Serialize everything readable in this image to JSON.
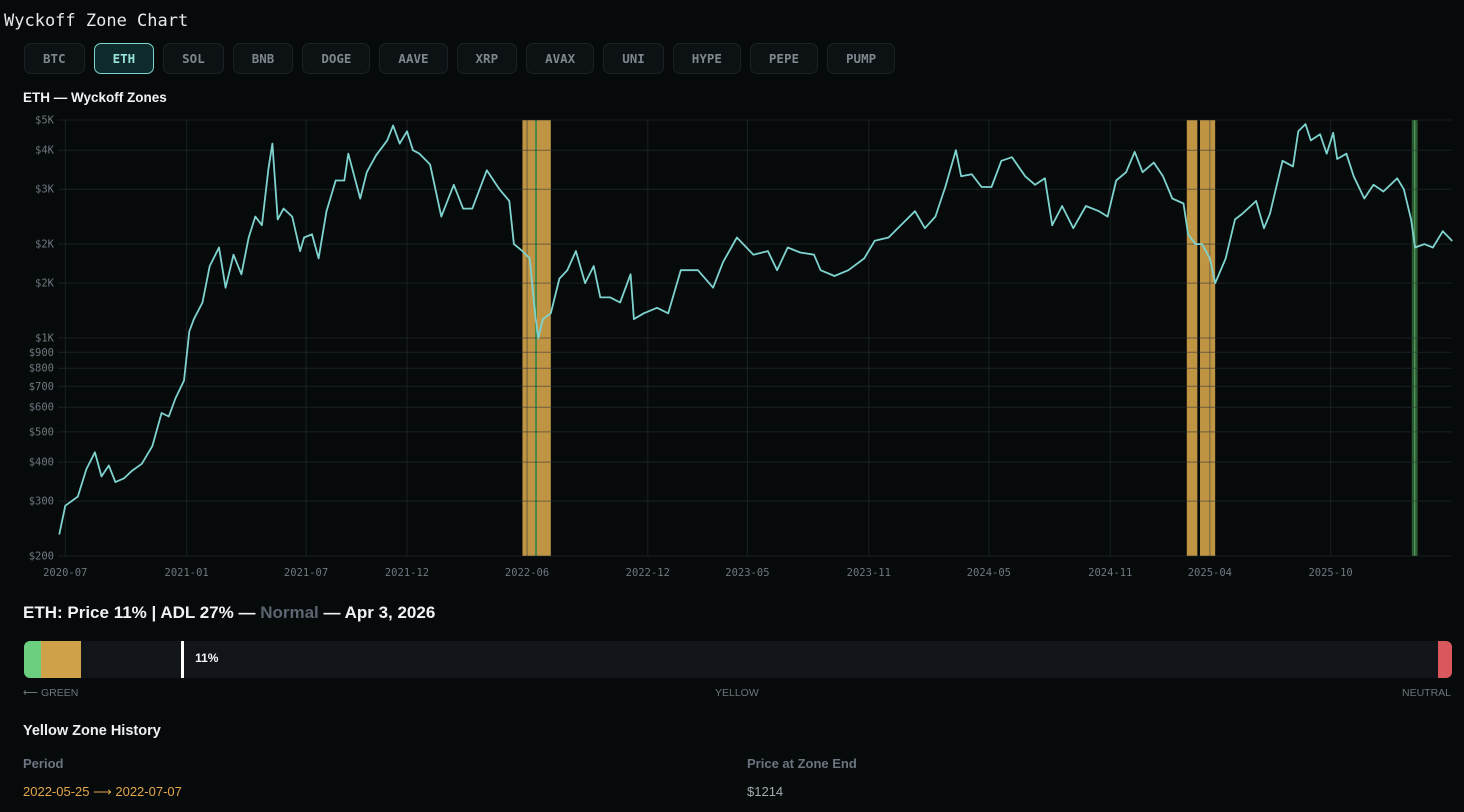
{
  "app": {
    "title": "Wyckoff Zone Chart"
  },
  "tabs": [
    {
      "label": "BTC",
      "active": false
    },
    {
      "label": "ETH",
      "active": true
    },
    {
      "label": "SOL",
      "active": false
    },
    {
      "label": "BNB",
      "active": false
    },
    {
      "label": "DOGE",
      "active": false
    },
    {
      "label": "AAVE",
      "active": false
    },
    {
      "label": "XRP",
      "active": false
    },
    {
      "label": "AVAX",
      "active": false
    },
    {
      "label": "UNI",
      "active": false
    },
    {
      "label": "HYPE",
      "active": false
    },
    {
      "label": "PEPE",
      "active": false
    },
    {
      "label": "PUMP",
      "active": false
    }
  ],
  "colors": {
    "line": "#7ed3ce",
    "yellow_zone": "#cfa24a",
    "green_zone": "#2f5e33",
    "green": "#6ccf7f",
    "neutral": "#d9585e",
    "accent": "#7cd6cf"
  },
  "chart_data": {
    "type": "line",
    "title": "ETH — Wyckoff Zones",
    "y_scale": "log",
    "ylim": [
      200,
      5000
    ],
    "xlim": [
      "2020-06-20",
      "2026-04-03"
    ],
    "grid": true,
    "y_ticks": [
      {
        "value": 5000,
        "label": "$5K"
      },
      {
        "value": 4000,
        "label": "$4K"
      },
      {
        "value": 3000,
        "label": "$3K"
      },
      {
        "value": 2000,
        "label": "$2K"
      },
      {
        "value": 1500,
        "label": "$2K"
      },
      {
        "value": 1000,
        "label": "$1K"
      },
      {
        "value": 900,
        "label": "$900"
      },
      {
        "value": 800,
        "label": "$800"
      },
      {
        "value": 700,
        "label": "$700"
      },
      {
        "value": 600,
        "label": "$600"
      },
      {
        "value": 500,
        "label": "$500"
      },
      {
        "value": 400,
        "label": "$400"
      },
      {
        "value": 300,
        "label": "$300"
      },
      {
        "value": 200,
        "label": "$200"
      }
    ],
    "x_ticks": [
      {
        "value": "2020-07-01",
        "label": "2020-07"
      },
      {
        "value": "2021-01-01",
        "label": "2021-01"
      },
      {
        "value": "2021-07-01",
        "label": "2021-07"
      },
      {
        "value": "2021-12-01",
        "label": "2021-12"
      },
      {
        "value": "2022-06-01",
        "label": "2022-06"
      },
      {
        "value": "2022-12-01",
        "label": "2022-12"
      },
      {
        "value": "2023-05-01",
        "label": "2023-05"
      },
      {
        "value": "2023-11-01",
        "label": "2023-11"
      },
      {
        "value": "2024-05-01",
        "label": "2024-05"
      },
      {
        "value": "2024-11-01",
        "label": "2024-11"
      },
      {
        "value": "2025-04-01",
        "label": "2025-04"
      },
      {
        "value": "2025-10-01",
        "label": "2025-10"
      }
    ],
    "zones": [
      {
        "type": "yellow",
        "start": "2022-05-25",
        "end": "2022-07-07"
      },
      {
        "type": "green",
        "start": "2022-06-13",
        "end": "2022-06-16"
      },
      {
        "type": "yellow",
        "start": "2025-02-25",
        "end": "2025-03-13"
      },
      {
        "type": "yellow",
        "start": "2025-03-17",
        "end": "2025-04-09"
      },
      {
        "type": "green",
        "start": "2026-02-01",
        "end": "2026-02-10"
      }
    ],
    "series": [
      {
        "points": [
          [
            "2020-06-22",
            235
          ],
          [
            "2020-07-01",
            290
          ],
          [
            "2020-07-20",
            310
          ],
          [
            "2020-08-02",
            380
          ],
          [
            "2020-08-15",
            430
          ],
          [
            "2020-08-25",
            360
          ],
          [
            "2020-09-05",
            390
          ],
          [
            "2020-09-15",
            345
          ],
          [
            "2020-09-28",
            355
          ],
          [
            "2020-10-10",
            375
          ],
          [
            "2020-10-25",
            395
          ],
          [
            "2020-11-10",
            450
          ],
          [
            "2020-11-24",
            575
          ],
          [
            "2020-12-05",
            560
          ],
          [
            "2020-12-15",
            640
          ],
          [
            "2020-12-28",
            730
          ],
          [
            "2021-01-05",
            1050
          ],
          [
            "2021-01-12",
            1150
          ],
          [
            "2021-01-25",
            1300
          ],
          [
            "2021-02-05",
            1700
          ],
          [
            "2021-02-19",
            1950
          ],
          [
            "2021-03-01",
            1450
          ],
          [
            "2021-03-13",
            1850
          ],
          [
            "2021-03-25",
            1600
          ],
          [
            "2021-04-05",
            2100
          ],
          [
            "2021-04-15",
            2450
          ],
          [
            "2021-04-25",
            2300
          ],
          [
            "2021-05-05",
            3500
          ],
          [
            "2021-05-11",
            4200
          ],
          [
            "2021-05-19",
            2400
          ],
          [
            "2021-05-28",
            2600
          ],
          [
            "2021-06-10",
            2450
          ],
          [
            "2021-06-22",
            1900
          ],
          [
            "2021-06-28",
            2100
          ],
          [
            "2021-07-10",
            2150
          ],
          [
            "2021-07-20",
            1800
          ],
          [
            "2021-08-01",
            2550
          ],
          [
            "2021-08-15",
            3200
          ],
          [
            "2021-08-28",
            3200
          ],
          [
            "2021-09-03",
            3900
          ],
          [
            "2021-09-21",
            2800
          ],
          [
            "2021-10-01",
            3400
          ],
          [
            "2021-10-15",
            3850
          ],
          [
            "2021-11-01",
            4300
          ],
          [
            "2021-11-10",
            4800
          ],
          [
            "2021-11-20",
            4200
          ],
          [
            "2021-12-01",
            4600
          ],
          [
            "2021-12-10",
            4000
          ],
          [
            "2021-12-20",
            3900
          ],
          [
            "2022-01-05",
            3600
          ],
          [
            "2022-01-22",
            2450
          ],
          [
            "2022-02-10",
            3100
          ],
          [
            "2022-02-24",
            2600
          ],
          [
            "2022-03-10",
            2600
          ],
          [
            "2022-04-01",
            3450
          ],
          [
            "2022-04-20",
            3000
          ],
          [
            "2022-05-05",
            2750
          ],
          [
            "2022-05-12",
            2000
          ],
          [
            "2022-05-25",
            1900
          ],
          [
            "2022-06-05",
            1800
          ],
          [
            "2022-06-13",
            1200
          ],
          [
            "2022-06-18",
            1000
          ],
          [
            "2022-06-25",
            1150
          ],
          [
            "2022-07-07",
            1200
          ],
          [
            "2022-07-20",
            1550
          ],
          [
            "2022-08-01",
            1650
          ],
          [
            "2022-08-14",
            1900
          ],
          [
            "2022-08-28",
            1500
          ],
          [
            "2022-09-10",
            1700
          ],
          [
            "2022-09-20",
            1350
          ],
          [
            "2022-10-05",
            1350
          ],
          [
            "2022-10-20",
            1300
          ],
          [
            "2022-11-05",
            1600
          ],
          [
            "2022-11-10",
            1150
          ],
          [
            "2022-11-25",
            1200
          ],
          [
            "2022-12-15",
            1250
          ],
          [
            "2023-01-01",
            1200
          ],
          [
            "2023-01-20",
            1650
          ],
          [
            "2023-02-15",
            1650
          ],
          [
            "2023-03-10",
            1450
          ],
          [
            "2023-03-25",
            1750
          ],
          [
            "2023-04-15",
            2100
          ],
          [
            "2023-05-10",
            1850
          ],
          [
            "2023-06-01",
            1900
          ],
          [
            "2023-06-15",
            1650
          ],
          [
            "2023-07-01",
            1950
          ],
          [
            "2023-07-20",
            1880
          ],
          [
            "2023-08-10",
            1850
          ],
          [
            "2023-08-20",
            1650
          ],
          [
            "2023-09-10",
            1580
          ],
          [
            "2023-10-01",
            1650
          ],
          [
            "2023-10-25",
            1800
          ],
          [
            "2023-11-10",
            2050
          ],
          [
            "2023-12-01",
            2100
          ],
          [
            "2023-12-15",
            2250
          ],
          [
            "2024-01-10",
            2550
          ],
          [
            "2024-01-25",
            2250
          ],
          [
            "2024-02-10",
            2450
          ],
          [
            "2024-02-25",
            3050
          ],
          [
            "2024-03-12",
            4000
          ],
          [
            "2024-03-20",
            3300
          ],
          [
            "2024-04-05",
            3350
          ],
          [
            "2024-04-20",
            3050
          ],
          [
            "2024-05-05",
            3050
          ],
          [
            "2024-05-20",
            3700
          ],
          [
            "2024-06-05",
            3800
          ],
          [
            "2024-06-25",
            3300
          ],
          [
            "2024-07-10",
            3100
          ],
          [
            "2024-07-25",
            3250
          ],
          [
            "2024-08-05",
            2300
          ],
          [
            "2024-08-20",
            2650
          ],
          [
            "2024-09-06",
            2250
          ],
          [
            "2024-09-25",
            2650
          ],
          [
            "2024-10-15",
            2550
          ],
          [
            "2024-10-28",
            2450
          ],
          [
            "2024-11-10",
            3200
          ],
          [
            "2024-11-25",
            3400
          ],
          [
            "2024-12-08",
            3950
          ],
          [
            "2024-12-20",
            3400
          ],
          [
            "2025-01-06",
            3650
          ],
          [
            "2025-01-20",
            3300
          ],
          [
            "2025-02-03",
            2800
          ],
          [
            "2025-02-20",
            2700
          ],
          [
            "2025-02-27",
            2150
          ],
          [
            "2025-03-10",
            2000
          ],
          [
            "2025-03-20",
            2000
          ],
          [
            "2025-04-01",
            1800
          ],
          [
            "2025-04-09",
            1500
          ],
          [
            "2025-04-25",
            1800
          ],
          [
            "2025-05-09",
            2400
          ],
          [
            "2025-05-20",
            2500
          ],
          [
            "2025-06-10",
            2750
          ],
          [
            "2025-06-22",
            2250
          ],
          [
            "2025-07-01",
            2500
          ],
          [
            "2025-07-20",
            3700
          ],
          [
            "2025-08-05",
            3550
          ],
          [
            "2025-08-13",
            4600
          ],
          [
            "2025-08-24",
            4850
          ],
          [
            "2025-09-01",
            4300
          ],
          [
            "2025-09-15",
            4500
          ],
          [
            "2025-09-25",
            3900
          ],
          [
            "2025-10-05",
            4550
          ],
          [
            "2025-10-11",
            3750
          ],
          [
            "2025-10-25",
            3900
          ],
          [
            "2025-11-05",
            3300
          ],
          [
            "2025-11-21",
            2800
          ],
          [
            "2025-12-05",
            3100
          ],
          [
            "2025-12-20",
            2950
          ],
          [
            "2026-01-10",
            3250
          ],
          [
            "2026-01-20",
            3000
          ],
          [
            "2026-01-31",
            2400
          ],
          [
            "2026-02-06",
            1950
          ],
          [
            "2026-02-20",
            2000
          ],
          [
            "2026-03-05",
            1950
          ],
          [
            "2026-03-20",
            2200
          ],
          [
            "2026-04-03",
            2050
          ]
        ]
      }
    ]
  },
  "status": {
    "prefix": "ETH: Price 11% | ADL 27% — ",
    "zone": "Normal",
    "suffix": " — Apr 3, 2026"
  },
  "gauge": {
    "value_label": "11%",
    "value": 0.11,
    "green_end": 0.012,
    "yellow_end": 0.04,
    "neutral_start": 0.99
  },
  "scale": {
    "left": "⟵ GREEN",
    "center": "YELLOW",
    "right": "NEUTRAL"
  },
  "history": {
    "title": "Yellow Zone History",
    "columns": [
      "Period",
      "Price at Zone End"
    ],
    "rows": [
      {
        "period": "2022-05-25 ⟶ 2022-07-07",
        "price": "$1214"
      }
    ]
  }
}
